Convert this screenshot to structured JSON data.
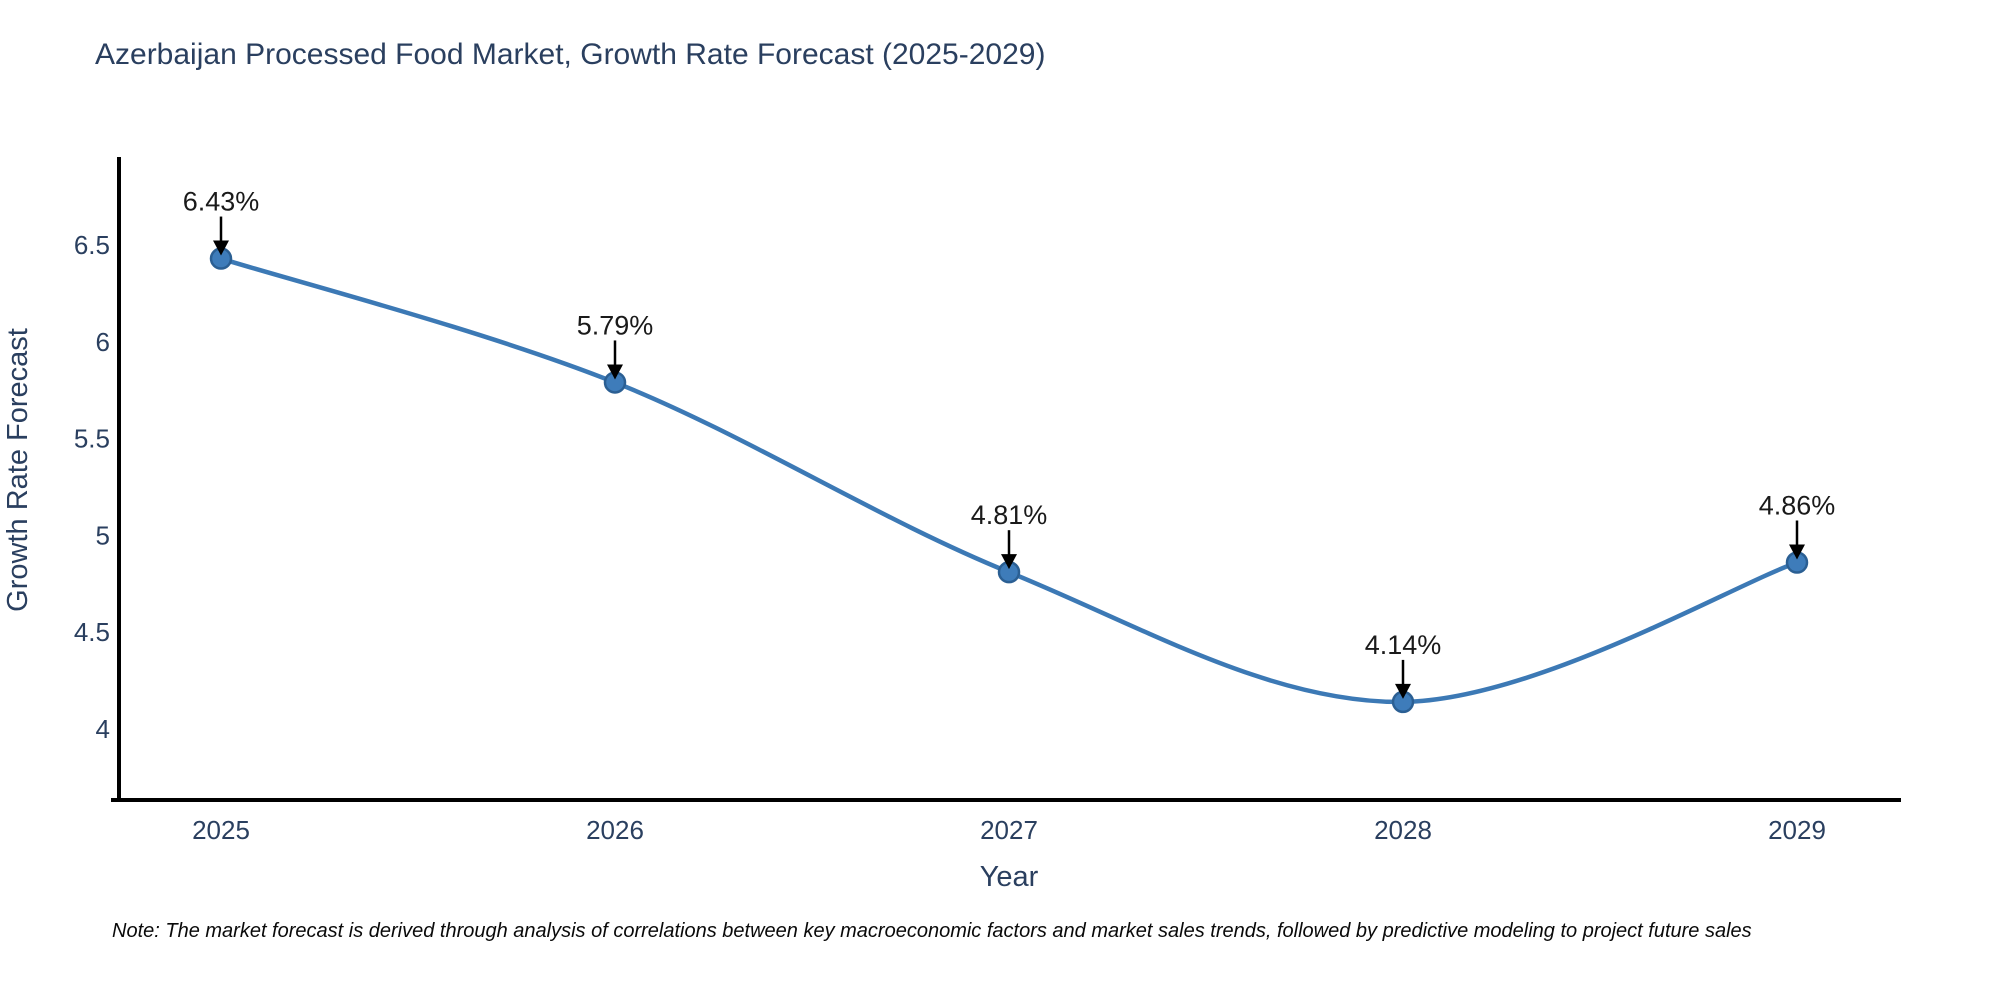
{
  "title": "Azerbaijan Processed Food Market, Growth Rate Forecast (2025-2029)",
  "note": "Note: The market forecast is derived through analysis of correlations between key macroeconomic factors and market sales trends, followed by predictive modeling to project future sales",
  "chart_data": {
    "type": "line",
    "line_shape": "spline",
    "title": "Azerbaijan Processed Food Market, Growth Rate Forecast (2025-2029)",
    "xlabel": "Year",
    "ylabel": "Growth Rate Forecast",
    "categories": [
      "2025",
      "2026",
      "2027",
      "2028",
      "2029"
    ],
    "values": [
      6.43,
      5.79,
      4.81,
      4.14,
      4.86
    ],
    "point_labels": [
      "6.43%",
      "5.79%",
      "4.81%",
      "4.14%",
      "4.86%"
    ],
    "ytick_labels": [
      "6.5",
      "6",
      "5.5",
      "5",
      "4.5",
      "4"
    ],
    "ytick_values": [
      6.5,
      6.0,
      5.5,
      5.0,
      4.5,
      4.0
    ],
    "ylim": [
      3.63,
      6.94
    ],
    "grid": false,
    "legend_position": "none",
    "colors": {
      "line": "#3c79b5",
      "marker_fill": "#3e7cba",
      "marker_edge": "#2b5f93",
      "axis_line": "#000000",
      "title_text": "#2a3f5f",
      "tick_text": "#2a3f5f",
      "axis_title_text": "#2a3f5f",
      "annotation_text": "#1a1a1a",
      "annotation_arrow": "#000000",
      "background": "#ffffff"
    }
  }
}
